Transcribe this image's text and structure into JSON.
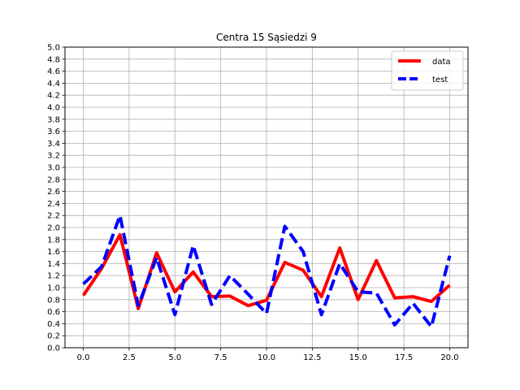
{
  "chart_data": {
    "type": "line",
    "title": "Centra 15 Sąsiedzi 9",
    "xlim": [
      -1,
      21
    ],
    "ylim": [
      0,
      5.0
    ],
    "grid": true,
    "legend_position": "top-right",
    "x_ticks": [
      "0.0",
      "2.5",
      "5.0",
      "7.5",
      "10.0",
      "12.5",
      "15.0",
      "17.5",
      "20.0"
    ],
    "y_ticks": [
      "0.0",
      "0.2",
      "0.4",
      "0.6",
      "0.8",
      "1.0",
      "1.2",
      "1.4",
      "1.6",
      "1.8",
      "2.0",
      "2.2",
      "2.4",
      "2.6",
      "2.8",
      "3.0",
      "3.2",
      "3.4",
      "3.6",
      "3.8",
      "4.0",
      "4.2",
      "4.4",
      "4.6",
      "4.8",
      "5.0"
    ],
    "x": [
      0,
      1,
      2,
      3,
      4,
      5,
      6,
      7,
      8,
      9,
      10,
      11,
      12,
      13,
      14,
      15,
      16,
      17,
      18,
      19,
      20
    ],
    "series": [
      {
        "name": "data",
        "color": "#ff0000",
        "style": "solid",
        "values": [
          0.87,
          1.32,
          1.88,
          0.65,
          1.58,
          0.93,
          1.26,
          0.85,
          0.86,
          0.7,
          0.79,
          1.42,
          1.29,
          0.85,
          1.66,
          0.8,
          1.45,
          0.83,
          0.85,
          0.77,
          1.04
        ]
      },
      {
        "name": "test",
        "color": "#0000ff",
        "style": "dashed",
        "values": [
          1.06,
          1.35,
          2.2,
          0.7,
          1.5,
          0.55,
          1.7,
          0.72,
          1.2,
          0.89,
          0.57,
          2.02,
          1.6,
          0.55,
          1.4,
          0.93,
          0.91,
          0.38,
          0.74,
          0.35,
          1.53
        ]
      }
    ]
  }
}
